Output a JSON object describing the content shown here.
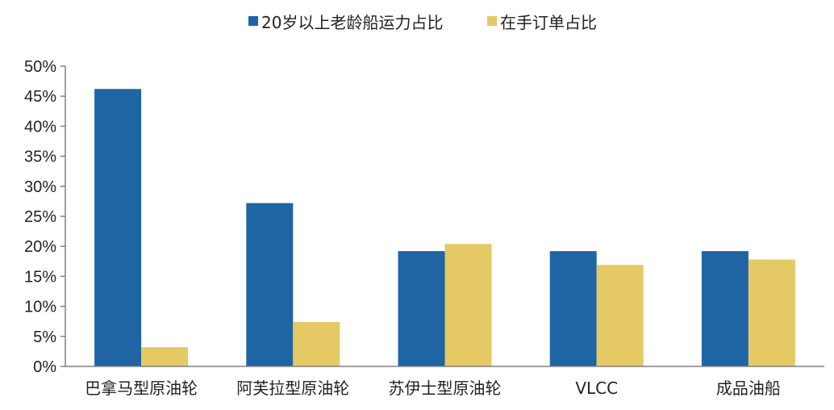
{
  "chart_data": {
    "type": "bar",
    "categories": [
      "巴拿马型原油轮",
      "阿芙拉型原油轮",
      "苏伊士型原油轮",
      "VLCC",
      "成品油船"
    ],
    "series": [
      {
        "name": "20岁以上老龄船运力占比",
        "color": "#1f65a3",
        "values": [
          46.2,
          27.2,
          19.2,
          19.2,
          19.2
        ]
      },
      {
        "name": "在手订单占比",
        "color": "#e5c965",
        "values": [
          3.2,
          7.4,
          20.4,
          16.9,
          17.8
        ]
      }
    ],
    "y_ticks": [
      "0%",
      "5%",
      "10%",
      "15%",
      "20%",
      "25%",
      "30%",
      "35%",
      "40%",
      "45%",
      "50%"
    ],
    "ylim": [
      0,
      50
    ],
    "y_unit": "%",
    "grid": false,
    "legend_position": "top-center",
    "axis_color": "#808080"
  }
}
